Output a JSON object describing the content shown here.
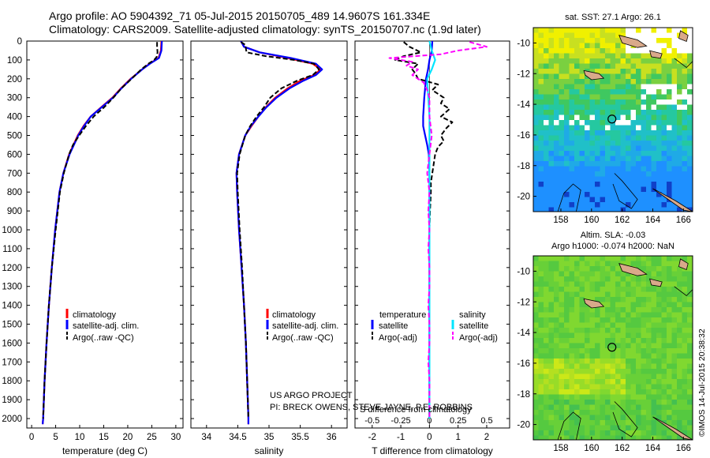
{
  "header": {
    "line1": "Argo profile: AO 5904392_71 05-Jul-2015 20150705_489 14.9607S 161.334E",
    "line2": "Climatology: CARS2009. Satellite-adjusted climatology: synTS_20150707.nc (1.9d later)"
  },
  "colors": {
    "climatology": "#ff0000",
    "satellite": "#0000ff",
    "argo": "#000000",
    "sal_satellite": "#00e5ff",
    "sal_argo": "#ff00ff",
    "land": "#d9a98a"
  },
  "depth_axis": {
    "ticks": [
      0,
      100,
      200,
      300,
      400,
      500,
      600,
      700,
      800,
      900,
      1000,
      1100,
      1200,
      1300,
      1400,
      1500,
      1600,
      1700,
      1800,
      1900,
      2000
    ],
    "range": [
      0,
      2050
    ]
  },
  "chart_data": [
    {
      "id": "temperature",
      "type": "line",
      "xlabel": "temperature (deg C)",
      "xlim": [
        -1,
        31.5
      ],
      "xticks": [
        0,
        5,
        10,
        15,
        20,
        25,
        30
      ],
      "ylim": [
        2050,
        0
      ],
      "legend": [
        "climatology",
        "satellite-adj. clim.",
        "Argo(..raw -QC)"
      ],
      "series": [
        {
          "name": "climatology",
          "depth": [
            0,
            50,
            90,
            120,
            150,
            200,
            250,
            300,
            350,
            400,
            450,
            500,
            600,
            700,
            800,
            1000,
            1200,
            1400,
            1600,
            1800,
            2000,
            2030
          ],
          "values": [
            27.0,
            26.9,
            26.4,
            24.5,
            23.0,
            20.6,
            18.6,
            16.8,
            14.5,
            12.3,
            10.8,
            9.6,
            7.8,
            6.6,
            5.8,
            4.9,
            4.2,
            3.6,
            3.1,
            2.7,
            2.4,
            2.3
          ]
        },
        {
          "name": "satellite-adj. clim.",
          "depth": [
            0,
            50,
            90,
            120,
            150,
            200,
            250,
            300,
            350,
            400,
            450,
            500,
            600,
            700,
            800,
            1000,
            1200,
            1400,
            1600,
            1800,
            2000,
            2030
          ],
          "values": [
            27.1,
            27.0,
            26.5,
            24.6,
            23.0,
            20.7,
            18.7,
            16.9,
            14.6,
            12.3,
            10.9,
            9.7,
            7.9,
            6.6,
            5.8,
            4.9,
            4.2,
            3.6,
            3.1,
            2.7,
            2.4,
            2.3
          ]
        },
        {
          "name": "Argo(..raw -QC)",
          "depth": [
            5,
            30,
            60,
            85,
            100,
            120,
            150,
            200,
            250,
            300,
            350,
            400,
            450,
            500,
            550,
            600,
            700,
            800,
            1000,
            1200,
            1400,
            1600,
            1800,
            2000
          ],
          "values": [
            26.1,
            26.1,
            26.2,
            26.0,
            25.5,
            24.3,
            22.8,
            20.8,
            18.7,
            17.0,
            15.1,
            12.9,
            11.3,
            9.9,
            8.6,
            7.8,
            6.7,
            5.9,
            5.0,
            4.2,
            3.6,
            3.1,
            2.7,
            2.4
          ]
        }
      ]
    },
    {
      "id": "salinity",
      "type": "line",
      "xlabel": "salinity",
      "xlim": [
        33.75,
        36.25
      ],
      "xticks": [
        34,
        34.5,
        35,
        35.5,
        36
      ],
      "ylim": [
        2050,
        0
      ],
      "legend": [
        "climatology",
        "satellite-adj. clim.",
        "Argo(..raw -QC)"
      ],
      "series": [
        {
          "name": "climatology",
          "depth": [
            0,
            30,
            60,
            90,
            120,
            150,
            180,
            210,
            250,
            300,
            350,
            400,
            450,
            500,
            600,
            700,
            800,
            1000,
            1200,
            1400,
            1600,
            1800,
            2000,
            2030
          ],
          "values": [
            34.55,
            34.6,
            34.85,
            35.3,
            35.7,
            35.83,
            35.72,
            35.5,
            35.3,
            35.1,
            34.95,
            34.83,
            34.72,
            34.62,
            34.52,
            34.48,
            34.49,
            34.52,
            34.56,
            34.6,
            34.63,
            34.65,
            34.67,
            34.67
          ]
        },
        {
          "name": "satellite-adj. clim.",
          "depth": [
            0,
            30,
            60,
            90,
            120,
            150,
            180,
            210,
            250,
            300,
            350,
            400,
            450,
            500,
            600,
            700,
            800,
            1000,
            1200,
            1400,
            1600,
            1800,
            2000,
            2030
          ],
          "values": [
            34.55,
            34.6,
            34.85,
            35.35,
            35.75,
            35.85,
            35.75,
            35.55,
            35.33,
            35.12,
            34.96,
            34.83,
            34.71,
            34.62,
            34.52,
            34.48,
            34.49,
            34.52,
            34.56,
            34.6,
            34.63,
            34.65,
            34.67,
            34.67
          ]
        },
        {
          "name": "Argo(..raw -QC)",
          "depth": [
            5,
            20,
            40,
            60,
            80,
            100,
            120,
            150,
            180,
            210,
            250,
            300,
            350,
            400,
            450,
            500,
            600,
            700,
            800,
            1000,
            1200,
            1400,
            1600,
            1800,
            2000
          ],
          "values": [
            34.55,
            34.62,
            34.63,
            34.64,
            34.95,
            35.4,
            35.72,
            35.8,
            35.7,
            35.45,
            35.2,
            35.02,
            34.92,
            34.8,
            34.7,
            34.62,
            34.53,
            34.49,
            34.5,
            34.53,
            34.57,
            34.6,
            34.63,
            34.65,
            34.67
          ]
        }
      ]
    },
    {
      "id": "difference",
      "type": "line",
      "xlabel": "T difference from climatology",
      "xlabel_top": "S difference from climatology",
      "xlim": [
        -2.6,
        2.8
      ],
      "xticks": [
        -2,
        -1,
        0,
        1,
        2
      ],
      "xlim_top": [
        -0.65,
        0.7
      ],
      "xticks_top": [
        -0.5,
        -0.25,
        0,
        0.25,
        0.5
      ],
      "xticklabels_top": [
        "-0.5",
        "-0.25",
        "0",
        "0.25",
        "0.5"
      ],
      "ylim": [
        2050,
        0
      ],
      "legend_headers": [
        "temperature",
        "salinity"
      ],
      "legend": [
        "satellite",
        "Argo(-adj)",
        "satellite",
        "Argo(-adj)"
      ],
      "series": [
        {
          "name": "T satellite",
          "axis": "T",
          "depth": [
            0,
            50,
            100,
            150,
            200,
            250,
            300,
            350,
            400,
            450,
            500,
            550,
            600,
            700,
            800,
            1000,
            1200,
            1400,
            1600,
            1800,
            2000
          ],
          "values": [
            0.1,
            0.08,
            0.0,
            -0.05,
            -0.12,
            -0.15,
            -0.18,
            -0.2,
            -0.22,
            -0.22,
            -0.15,
            -0.08,
            -0.02,
            0.0,
            0.0,
            0.0,
            0.0,
            0.0,
            0.0,
            0.0,
            0.0
          ]
        },
        {
          "name": "T Argo(-adj)",
          "axis": "T",
          "depth": [
            5,
            30,
            60,
            80,
            100,
            120,
            150,
            170,
            200,
            230,
            260,
            300,
            330,
            360,
            400,
            430,
            460,
            500,
            530,
            560,
            600,
            650,
            700,
            750,
            800,
            900,
            1000,
            1200,
            1400,
            1600,
            1800,
            2000
          ],
          "values": [
            -0.9,
            -0.7,
            -0.3,
            -0.9,
            -1.2,
            -0.4,
            -0.6,
            -0.5,
            -0.4,
            0.3,
            0.1,
            0.5,
            0.4,
            0.7,
            0.4,
            0.8,
            0.6,
            0.4,
            0.5,
            0.3,
            0.2,
            0.15,
            0.1,
            0.05,
            0.05,
            0.02,
            0.0,
            0.0,
            0.0,
            0.0,
            0.0,
            0.0
          ]
        },
        {
          "name": "S satellite",
          "axis": "S",
          "depth": [
            0,
            50,
            100,
            150,
            200,
            300,
            400,
            500,
            600,
            800,
            1000,
            1500,
            2000
          ],
          "values": [
            0.0,
            0.02,
            0.05,
            0.02,
            -0.02,
            -0.01,
            0.0,
            0.0,
            0.0,
            0.0,
            0.0,
            0.0,
            0.0
          ]
        },
        {
          "name": "S Argo(-adj)",
          "axis": "S",
          "depth": [
            5,
            30,
            50,
            70,
            90,
            110,
            130,
            150,
            180,
            220,
            260,
            300,
            400,
            500,
            600,
            700,
            800,
            900,
            1000,
            1100,
            1200,
            1300,
            1400,
            1500,
            1600,
            1700,
            1800,
            1900,
            2000
          ],
          "values": [
            0.35,
            0.5,
            0.25,
            0.1,
            -0.35,
            -0.15,
            -0.2,
            -0.1,
            -0.15,
            -0.05,
            -0.02,
            0.0,
            0.0,
            0.02,
            0.0,
            -0.02,
            0.0,
            -0.01,
            0.0,
            -0.01,
            0.0,
            0.0,
            -0.01,
            0.0,
            0.0,
            -0.01,
            0.0,
            0.0,
            0.0
          ]
        }
      ]
    },
    {
      "id": "sst_map",
      "type": "heatmap",
      "title": "sat. SST: 27.1  Argo: 26.1",
      "xlim": [
        156.2,
        166.6
      ],
      "ylim": [
        -21,
        -9
      ],
      "xticks": [
        158,
        160,
        162,
        164,
        166
      ],
      "yticks": [
        -10,
        -12,
        -14,
        -16,
        -18,
        -20
      ],
      "marker": {
        "lon": 161.334,
        "lat": -14.9607
      }
    },
    {
      "id": "sla_map",
      "type": "heatmap",
      "title": "Altim. SLA: -0.03",
      "subtitle": "Argo h1000: -0.074 h2000: NaN",
      "xlim": [
        156.2,
        166.6
      ],
      "ylim": [
        -21,
        -9
      ],
      "xticks": [
        158,
        160,
        162,
        164,
        166
      ],
      "yticks": [
        -10,
        -12,
        -14,
        -16,
        -18,
        -20
      ],
      "marker": {
        "lon": 161.334,
        "lat": -14.9607
      }
    }
  ],
  "annotations": {
    "project": "US ARGO PROJECT",
    "pi": "PI: BRECK OWENS, STEVE JAYNE, P.E. ROBBINS",
    "stamp": "©IMOS 14-Jul-2015 20:38:32"
  }
}
